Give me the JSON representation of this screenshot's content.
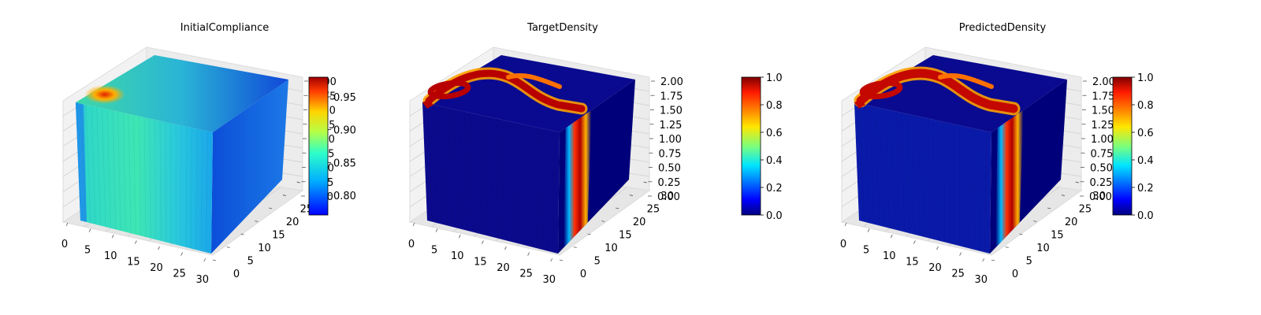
{
  "chart_data": [
    {
      "type": "voxel3d",
      "title": "InitialCompliance",
      "x_ticks": [
        "0",
        "5",
        "10",
        "15",
        "20",
        "25",
        "30"
      ],
      "y_ticks": [
        "0",
        "5",
        "10",
        "15",
        "20",
        "25",
        "30"
      ],
      "z_ticks": [
        "0.00",
        "0.25",
        "0.50",
        "0.75",
        "1.00",
        "1.25",
        "1.50",
        "1.75",
        "2.00"
      ],
      "colorbar": {
        "min": 0.77,
        "max": 0.98,
        "ticks": [
          "0.80",
          "0.85",
          "0.90",
          "0.95"
        ],
        "tick_values": [
          0.8,
          0.85,
          0.9,
          0.95
        ],
        "colormap": "jet"
      },
      "colors": {
        "front": "#37e7b8",
        "side": "#0f60e0",
        "top": "#2a9cd6"
      },
      "grid": true
    },
    {
      "type": "voxel3d",
      "title": "TargetDensity",
      "x_ticks": [
        "0",
        "5",
        "10",
        "15",
        "20",
        "25",
        "30"
      ],
      "y_ticks": [
        "0",
        "5",
        "10",
        "15",
        "20",
        "25",
        "30"
      ],
      "z_ticks": [
        "0.00",
        "0.25",
        "0.50",
        "0.75",
        "1.00",
        "1.25",
        "1.50",
        "1.75",
        "2.00"
      ],
      "colorbar": {
        "min": 0.0,
        "max": 1.0,
        "ticks": [
          "0.0",
          "0.2",
          "0.4",
          "0.6",
          "0.8",
          "1.0"
        ],
        "tick_values": [
          0.0,
          0.2,
          0.4,
          0.6,
          0.8,
          1.0
        ],
        "colormap": "jet"
      },
      "colors": {
        "front": "#0b0a8c",
        "side": "#00007a",
        "top": "#0a0a90",
        "structure": "#b80000"
      },
      "grid": true
    },
    {
      "type": "voxel3d",
      "title": "PredictedDensity",
      "x_ticks": [
        "0",
        "5",
        "10",
        "15",
        "20",
        "25",
        "30"
      ],
      "y_ticks": [
        "0",
        "5",
        "10",
        "15",
        "20",
        "25",
        "30"
      ],
      "z_ticks": [
        "0.00",
        "0.25",
        "0.50",
        "0.75",
        "1.00",
        "1.25",
        "1.50",
        "1.75",
        "2.00"
      ],
      "colorbar": {
        "min": 0.0,
        "max": 1.0,
        "ticks": [
          "0.0",
          "0.2",
          "0.4",
          "0.6",
          "0.8",
          "1.0"
        ],
        "tick_values": [
          0.0,
          0.2,
          0.4,
          0.6,
          0.8,
          1.0
        ],
        "colormap": "jet"
      },
      "colors": {
        "front": "#0a1aa8",
        "side": "#00007a",
        "top": "#0a0a90",
        "structure": "#c40800"
      },
      "grid": true
    }
  ]
}
